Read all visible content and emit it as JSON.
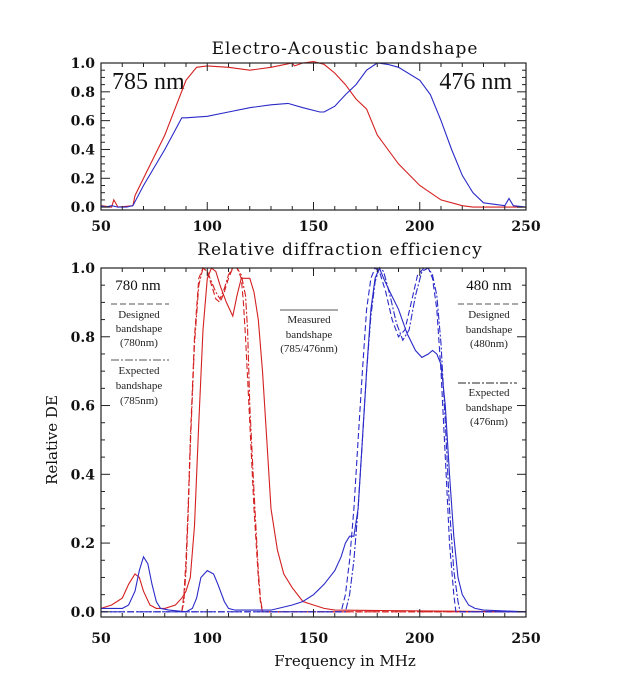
{
  "chart_data": [
    {
      "type": "line",
      "title": "Electro-Acoustic bandshape",
      "xlabel": "",
      "ylabel": "",
      "xlim": [
        50,
        250
      ],
      "ylim": [
        -0.02,
        1.0
      ],
      "xticks": [
        "50",
        "100",
        "150",
        "200",
        "250"
      ],
      "yticks": [
        "0.0",
        "0.2",
        "0.4",
        "0.6",
        "0.8",
        "1.0"
      ],
      "annotations": {
        "left": "785 nm",
        "right": "476 nm"
      },
      "series": [
        {
          "color": "#d42020",
          "dash": "solid",
          "x": [
            50,
            55,
            56,
            58,
            65,
            66,
            70,
            80,
            90,
            95,
            100,
            110,
            120,
            130,
            140,
            141,
            145,
            150,
            155,
            160,
            165,
            170,
            175,
            180,
            190,
            200,
            210,
            220,
            225,
            230,
            240,
            250
          ],
          "y": [
            0.01,
            0.0,
            0.05,
            0.0,
            0.01,
            0.08,
            0.2,
            0.5,
            0.88,
            0.97,
            0.98,
            0.97,
            0.95,
            0.97,
            1.0,
            0.98,
            1.0,
            1.01,
            0.99,
            0.93,
            0.85,
            0.75,
            0.68,
            0.5,
            0.3,
            0.15,
            0.05,
            0.01,
            0.0,
            0.0,
            0.0,
            0.0
          ]
        },
        {
          "color": "#2a2ac8",
          "dash": "solid",
          "x": [
            50,
            52,
            55,
            58,
            62,
            65,
            70,
            80,
            88,
            90,
            100,
            110,
            120,
            130,
            138,
            145,
            153,
            155,
            160,
            165,
            170,
            175,
            180,
            185,
            190,
            200,
            205,
            210,
            215,
            220,
            225,
            230,
            240,
            242,
            244,
            250
          ],
          "y": [
            0.01,
            0.0,
            0.01,
            0.0,
            0.0,
            0.01,
            0.15,
            0.4,
            0.62,
            0.62,
            0.63,
            0.66,
            0.69,
            0.71,
            0.72,
            0.69,
            0.66,
            0.66,
            0.7,
            0.78,
            0.85,
            0.95,
            1.0,
            0.99,
            0.97,
            0.88,
            0.78,
            0.6,
            0.4,
            0.22,
            0.1,
            0.03,
            0.01,
            0.06,
            0.01,
            0.0
          ]
        }
      ]
    },
    {
      "type": "line",
      "title": "Relative diffraction efficiency",
      "xlabel": "Frequency in MHz",
      "ylabel": "Relative DE",
      "xlim": [
        50,
        250
      ],
      "ylim": [
        -0.015,
        1.0
      ],
      "xticks": [
        "50",
        "100",
        "150",
        "200",
        "250"
      ],
      "yticks": [
        "0.0",
        "0.2",
        "0.4",
        "0.6",
        "0.8",
        "1.0"
      ],
      "annotations": {
        "left_title": "780 nm",
        "left_designed": [
          "Designed",
          "bandshape",
          "(780nm)"
        ],
        "left_expected": [
          "Expected",
          "bandshape",
          "(785nm)"
        ],
        "mid_measured": [
          "Measured",
          "bandshape",
          "(785/476nm)"
        ],
        "right_title": "480 nm",
        "right_designed": [
          "Designed",
          "bandshape",
          "(480nm)"
        ],
        "right_expected": [
          "Expected",
          "bandshape",
          "(476nm)"
        ]
      },
      "series": [
        {
          "color": "#d42020",
          "dash": "solid",
          "x": [
            50,
            55,
            60,
            63,
            66,
            68,
            70,
            73,
            76,
            80,
            85,
            88,
            90,
            92,
            94,
            96,
            98,
            100,
            102,
            104,
            106,
            109,
            112,
            114,
            116,
            118,
            120,
            122,
            124,
            126,
            128,
            130,
            133,
            136,
            140,
            145,
            150,
            155,
            160,
            250
          ],
          "y": [
            0.01,
            0.02,
            0.04,
            0.08,
            0.11,
            0.1,
            0.06,
            0.02,
            0.01,
            0.01,
            0.02,
            0.04,
            0.06,
            0.1,
            0.25,
            0.55,
            0.82,
            0.97,
            1.0,
            0.99,
            0.95,
            0.9,
            0.86,
            0.92,
            0.97,
            0.97,
            0.97,
            0.93,
            0.85,
            0.7,
            0.5,
            0.3,
            0.18,
            0.11,
            0.07,
            0.03,
            0.02,
            0.01,
            0.005,
            0.0
          ]
        },
        {
          "color": "#d42020",
          "dash": "dashed",
          "x": [
            88,
            89,
            90,
            91,
            92,
            94,
            96,
            98,
            100,
            102,
            104,
            106,
            108,
            110,
            112,
            114,
            116,
            117,
            118,
            120,
            122,
            124,
            125,
            126,
            250
          ],
          "y": [
            0.0,
            0.05,
            0.15,
            0.3,
            0.5,
            0.8,
            0.97,
            1.0,
            0.99,
            0.95,
            0.91,
            0.9,
            0.93,
            0.97,
            1.0,
            1.0,
            0.97,
            0.9,
            0.8,
            0.55,
            0.3,
            0.1,
            0.03,
            0.0,
            0.0
          ]
        },
        {
          "color": "#d42020",
          "dash": "dashdot",
          "x": [
            88,
            89,
            90,
            91,
            92,
            94,
            96,
            98,
            100,
            102,
            104,
            106,
            108,
            110,
            112,
            114,
            116,
            118,
            119,
            120,
            122,
            124,
            125,
            126,
            250
          ],
          "y": [
            0.0,
            0.03,
            0.12,
            0.28,
            0.48,
            0.78,
            0.95,
            1.0,
            0.99,
            0.96,
            0.93,
            0.91,
            0.94,
            0.98,
            1.0,
            1.0,
            0.98,
            0.92,
            0.82,
            0.6,
            0.35,
            0.12,
            0.04,
            0.0,
            0.0
          ]
        },
        {
          "color": "#2a2ac8",
          "dash": "solid",
          "x": [
            50,
            55,
            60,
            63,
            66,
            68,
            70,
            72,
            74,
            76,
            78,
            82,
            90,
            93,
            95,
            97,
            100,
            103,
            105,
            108,
            110,
            113,
            120,
            130,
            140,
            145,
            150,
            155,
            160,
            163,
            165,
            167,
            169,
            171,
            173,
            175,
            177,
            179,
            181,
            183,
            186,
            190,
            194,
            198,
            201,
            204,
            206,
            208,
            210,
            212,
            214,
            216,
            218,
            220,
            223,
            226,
            230,
            250
          ],
          "y": [
            0.01,
            0.01,
            0.01,
            0.02,
            0.06,
            0.12,
            0.16,
            0.14,
            0.08,
            0.03,
            0.01,
            0.005,
            0.0,
            0.01,
            0.04,
            0.1,
            0.12,
            0.11,
            0.08,
            0.03,
            0.01,
            0.005,
            0.005,
            0.005,
            0.02,
            0.03,
            0.05,
            0.08,
            0.12,
            0.16,
            0.2,
            0.22,
            0.22,
            0.3,
            0.5,
            0.7,
            0.88,
            0.97,
            1.0,
            0.97,
            0.93,
            0.88,
            0.81,
            0.76,
            0.74,
            0.75,
            0.76,
            0.75,
            0.72,
            0.6,
            0.4,
            0.22,
            0.1,
            0.05,
            0.02,
            0.01,
            0.005,
            0.0
          ]
        },
        {
          "color": "#2a2ac8",
          "dash": "dashed",
          "x": [
            50,
            163,
            165,
            167,
            169,
            171,
            173,
            175,
            177,
            179,
            181,
            184,
            187,
            190,
            193,
            196,
            199,
            202,
            204,
            206,
            208,
            210,
            212,
            214,
            216,
            217,
            250
          ],
          "y": [
            0.0,
            0.0,
            0.05,
            0.15,
            0.3,
            0.5,
            0.7,
            0.88,
            0.97,
            1.0,
            0.99,
            0.93,
            0.85,
            0.8,
            0.82,
            0.9,
            0.98,
            1.0,
            1.0,
            0.97,
            0.88,
            0.7,
            0.45,
            0.2,
            0.05,
            0.0,
            0.0
          ]
        },
        {
          "color": "#2a2ac8",
          "dash": "dashdot",
          "x": [
            50,
            165,
            167,
            169,
            171,
            173,
            175,
            177,
            179,
            181,
            183,
            186,
            189,
            192,
            195,
            198,
            201,
            204,
            206,
            208,
            210,
            212,
            214,
            216,
            218,
            219,
            250
          ],
          "y": [
            0.0,
            0.0,
            0.05,
            0.15,
            0.3,
            0.5,
            0.7,
            0.86,
            0.96,
            1.0,
            0.99,
            0.92,
            0.84,
            0.79,
            0.82,
            0.92,
            0.99,
            1.0,
            0.98,
            0.92,
            0.78,
            0.55,
            0.3,
            0.12,
            0.03,
            0.0,
            0.0
          ]
        }
      ]
    }
  ]
}
